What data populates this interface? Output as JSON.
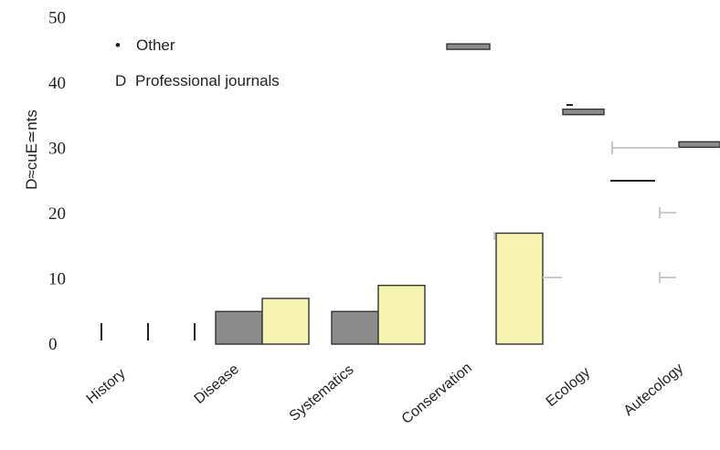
{
  "chart_data": {
    "type": "bar",
    "title": "",
    "xlabel": "",
    "ylabel": "D≈cuE≃nts",
    "ylim": [
      0,
      50
    ],
    "yticks": [
      0,
      10,
      20,
      30,
      40,
      50
    ],
    "categories": [
      "History",
      "Disease",
      "Systematics",
      "Conservation",
      "Ecology",
      "Autecology"
    ],
    "series": [
      {
        "name": "Other",
        "color": "#8c8c8c",
        "values": [
          0,
          5,
          5,
          46,
          36,
          31
        ]
      },
      {
        "name": "Professional journals",
        "color": "#f7f3b0",
        "values": [
          0,
          7,
          9,
          17,
          0,
          0
        ]
      }
    ],
    "legend": {
      "position": "top-left",
      "entries": [
        {
          "marker": "•",
          "label": "Other",
          "marker_color": "#8c8c8c"
        },
        {
          "marker": "D",
          "label": "Professional journals",
          "marker_color": "#b5b07a"
        }
      ]
    },
    "grid": false
  }
}
